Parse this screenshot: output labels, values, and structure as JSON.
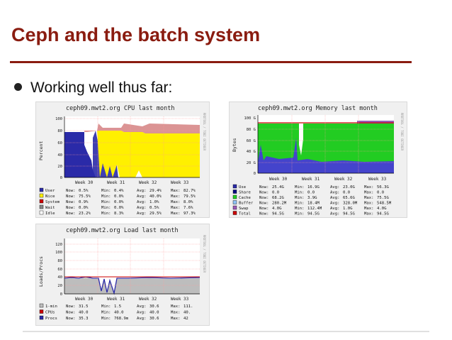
{
  "slide": {
    "title": "Ceph and the batch system",
    "bullet": "Working well thus far:"
  },
  "colors": {
    "title": "#8a1c10",
    "blue": "#2a2aa8",
    "yellow": "#fff000",
    "green": "#22cc22",
    "red": "#cc0000",
    "gray": "#bdbdbd",
    "plot_bg": "#ffffff",
    "grid": "#ff9999"
  },
  "graphs": {
    "cpu": {
      "title": "ceph09.mwt2.org CPU last month",
      "side_label": "RRDTOOL / TOBI OETIKER",
      "ylabel": "Percent",
      "yticks": [
        "100",
        "80",
        "60",
        "40",
        "20",
        "0"
      ],
      "xticks": [
        "Week 30",
        "Week 31",
        "Week 32",
        "Week 33"
      ],
      "legend": [
        {
          "name": "User",
          "now": "0.5%",
          "min": "0.4%",
          "avg": "29.4%",
          "max": "82.7%",
          "color": "#2a2aa8"
        },
        {
          "name": "Nice",
          "now": "75.5%",
          "min": "0.0%",
          "avg": "40.0%",
          "max": "79.5%",
          "color": "#fff000"
        },
        {
          "name": "System",
          "now": "0.9%",
          "min": "0.0%",
          "avg": "1.0%",
          "max": "8.0%",
          "color": "#cc0000"
        },
        {
          "name": "Wait",
          "now": "0.0%",
          "min": "0.0%",
          "avg": "0.5%",
          "max": "7.6%",
          "color": "#888888"
        },
        {
          "name": "Idle",
          "now": "23.2%",
          "min": "8.3%",
          "avg": "29.5%",
          "max": "97.3%",
          "color": "#ffffff"
        }
      ],
      "labels": {
        "now": "Now:",
        "min": "Min:",
        "avg": "Avg:",
        "max": "Max:"
      }
    },
    "memory": {
      "title": "ceph09.mwt2.org Memory last month",
      "side_label": "RRDTOOL / TOBI OETIKER",
      "ylabel": "Bytes",
      "yticks": [
        "100 G",
        "80 G",
        "60 G",
        "40 G",
        "20 G",
        "0"
      ],
      "xticks": [
        "Week 30",
        "Week 31",
        "Week 32",
        "Week 33"
      ],
      "legend": [
        {
          "name": "Use",
          "now": "25.4G",
          "min": "16.9G",
          "avg": "23.0G",
          "max": "56.3G",
          "color": "#2a2aa8"
        },
        {
          "name": "Share",
          "now": "0.0",
          "min": "0.0",
          "avg": "0.0",
          "max": "0.0",
          "color": "#000080"
        },
        {
          "name": "Cache",
          "now": "68.2G",
          "min": "3.9G",
          "avg": "65.6G",
          "max": "75.5G",
          "color": "#22cc22"
        },
        {
          "name": "Buffer",
          "now": "280.2M",
          "min": "18.4M",
          "avg": "328.0M",
          "max": "548.5M",
          "color": "#8ec3f5"
        },
        {
          "name": "Swap",
          "now": "4.0G",
          "min": "112.4M",
          "avg": "1.0G",
          "max": "4.0G",
          "color": "#9b59b6"
        },
        {
          "name": "Total",
          "now": "94.5G",
          "min": "94.5G",
          "avg": "94.5G",
          "max": "94.5G",
          "color": "#cc0000"
        }
      ],
      "labels": {
        "now": "Now:",
        "min": "Min:",
        "avg": "Avg:",
        "max": "Max:"
      }
    },
    "load": {
      "title": "ceph09.mwt2.org Load last month",
      "side_label": "RRDTOOL / TOBI OETIKER",
      "ylabel": "Loads/Procs",
      "yticks": [
        "120",
        "100",
        "80",
        "60",
        "40",
        "20",
        "0"
      ],
      "xticks": [
        "Week 30",
        "Week 31",
        "Week 32",
        "Week 33"
      ],
      "legend": [
        {
          "name": "1-min",
          "now": "31.5",
          "min": "1.5",
          "avg": "30.6",
          "max": "111.",
          "color": "#bdbdbd"
        },
        {
          "name": "CPUs",
          "now": "40.0",
          "min": "40.0",
          "avg": "40.0",
          "max": "40.",
          "color": "#cc0000"
        },
        {
          "name": "Procs",
          "now": "35.3",
          "min": "768.9m",
          "avg": "30.6",
          "max": "42",
          "color": "#2a2aa8"
        }
      ],
      "labels": {
        "now": "Now:",
        "min": "Min:",
        "avg": "Avg:",
        "max": "Max:"
      }
    }
  }
}
